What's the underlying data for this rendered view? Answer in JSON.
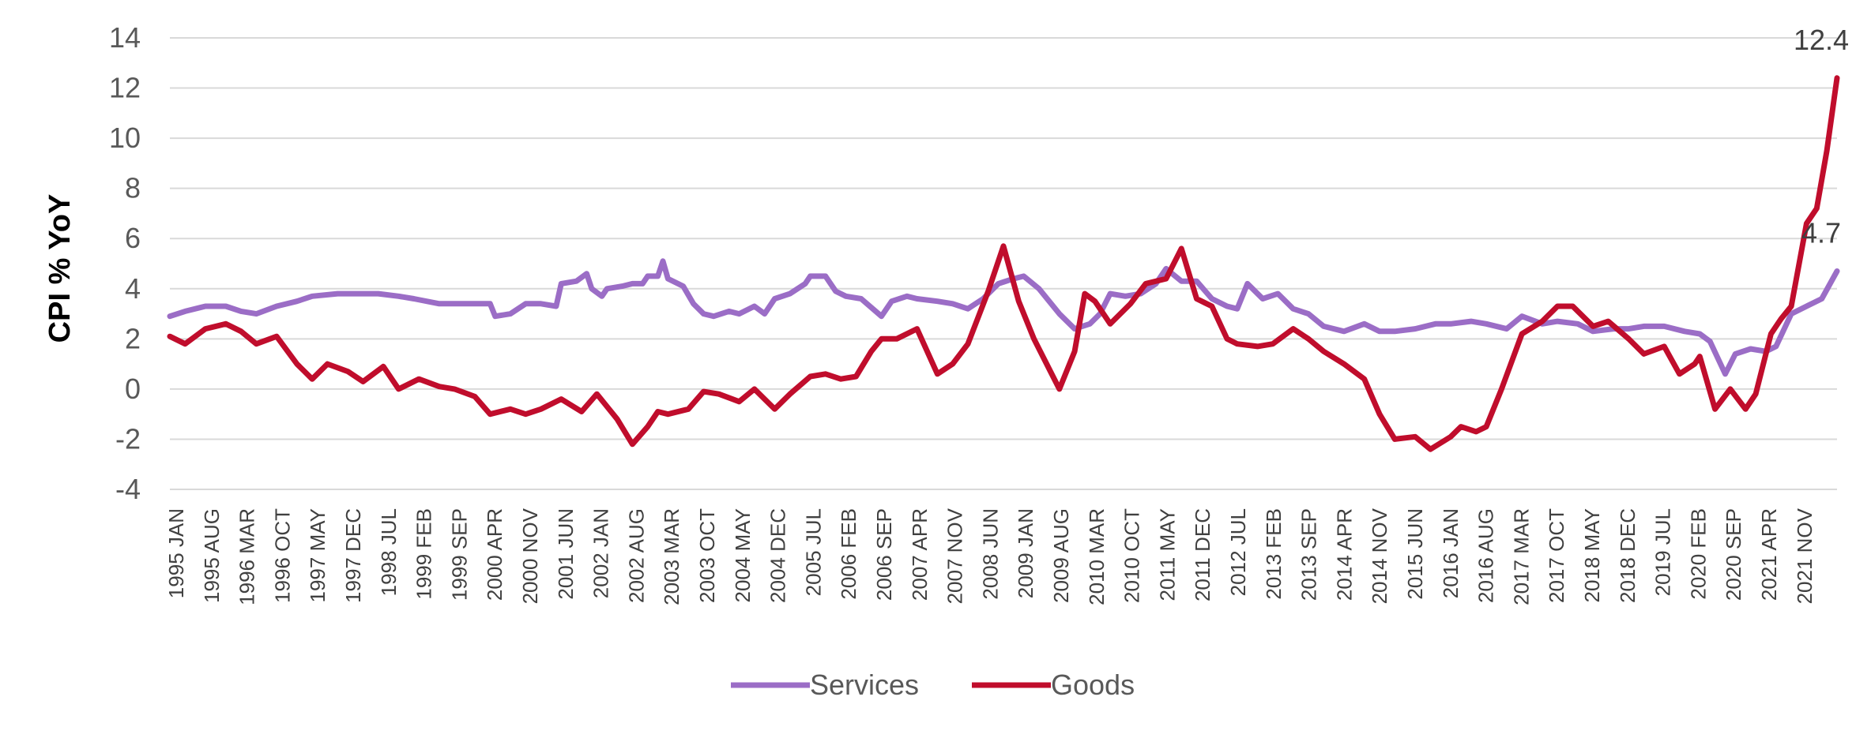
{
  "chart_data": {
    "type": "line",
    "title": "",
    "xlabel": "",
    "ylabel": "CPI % YoY",
    "ylim": [
      -4,
      14
    ],
    "y_ticks": [
      -4,
      -2,
      0,
      2,
      4,
      6,
      8,
      10,
      12,
      14
    ],
    "grid": "horizontal",
    "legend_position": "bottom",
    "x_start": "1995-01",
    "x_end": "2022-05",
    "x_tick_labels": [
      "1995 JAN",
      "1995 AUG",
      "1996 MAR",
      "1996 OCT",
      "1997 MAY",
      "1997 DEC",
      "1998 JUL",
      "1999 FEB",
      "1999 SEP",
      "2000 APR",
      "2000 NOV",
      "2001 JUN",
      "2002 JAN",
      "2002 AUG",
      "2003 MAR",
      "2003 OCT",
      "2004 MAY",
      "2004 DEC",
      "2005 JUL",
      "2006 FEB",
      "2006 SEP",
      "2007 APR",
      "2007 NOV",
      "2008 JUN",
      "2009 JAN",
      "2009 AUG",
      "2010 MAR",
      "2010 OCT",
      "2011 MAY",
      "2011 DEC",
      "2012 JUL",
      "2013 FEB",
      "2013 SEP",
      "2014 APR",
      "2014 NOV",
      "2015 JUN",
      "2016 JAN",
      "2016 AUG",
      "2017 MAR",
      "2017 OCT",
      "2018 MAY",
      "2018 DEC",
      "2019 JUL",
      "2020 FEB",
      "2020 SEP",
      "2021 APR",
      "2021 NOV"
    ],
    "series": [
      {
        "name": "Services",
        "color": "#9B6DC6",
        "end_label": "4.7",
        "points": [
          [
            "1995-01",
            2.9
          ],
          [
            "1995-04",
            3.1
          ],
          [
            "1995-08",
            3.3
          ],
          [
            "1995-12",
            3.3
          ],
          [
            "1996-03",
            3.1
          ],
          [
            "1996-06",
            3.0
          ],
          [
            "1996-10",
            3.3
          ],
          [
            "1997-02",
            3.5
          ],
          [
            "1997-05",
            3.7
          ],
          [
            "1997-10",
            3.8
          ],
          [
            "1998-01",
            3.8
          ],
          [
            "1998-06",
            3.8
          ],
          [
            "1998-10",
            3.7
          ],
          [
            "1999-01",
            3.6
          ],
          [
            "1999-06",
            3.4
          ],
          [
            "1999-12",
            3.4
          ],
          [
            "2000-04",
            3.4
          ],
          [
            "2000-05",
            2.9
          ],
          [
            "2000-08",
            3.0
          ],
          [
            "2000-11",
            3.4
          ],
          [
            "2001-02",
            3.4
          ],
          [
            "2001-05",
            3.3
          ],
          [
            "2001-06",
            4.2
          ],
          [
            "2001-09",
            4.3
          ],
          [
            "2001-11",
            4.6
          ],
          [
            "2001-12",
            4.0
          ],
          [
            "2002-02",
            3.7
          ],
          [
            "2002-03",
            4.0
          ],
          [
            "2002-06",
            4.1
          ],
          [
            "2002-08",
            4.2
          ],
          [
            "2002-10",
            4.2
          ],
          [
            "2002-11",
            4.5
          ],
          [
            "2003-01",
            4.5
          ],
          [
            "2003-02",
            5.1
          ],
          [
            "2003-03",
            4.4
          ],
          [
            "2003-06",
            4.1
          ],
          [
            "2003-08",
            3.4
          ],
          [
            "2003-10",
            3.0
          ],
          [
            "2003-12",
            2.9
          ],
          [
            "2004-03",
            3.1
          ],
          [
            "2004-05",
            3.0
          ],
          [
            "2004-08",
            3.3
          ],
          [
            "2004-10",
            3.0
          ],
          [
            "2004-12",
            3.6
          ],
          [
            "2005-03",
            3.8
          ],
          [
            "2005-06",
            4.2
          ],
          [
            "2005-07",
            4.5
          ],
          [
            "2005-10",
            4.5
          ],
          [
            "2005-12",
            3.9
          ],
          [
            "2006-02",
            3.7
          ],
          [
            "2006-05",
            3.6
          ],
          [
            "2006-09",
            2.9
          ],
          [
            "2006-11",
            3.5
          ],
          [
            "2007-02",
            3.7
          ],
          [
            "2007-04",
            3.6
          ],
          [
            "2007-08",
            3.5
          ],
          [
            "2007-11",
            3.4
          ],
          [
            "2008-02",
            3.2
          ],
          [
            "2008-05",
            3.6
          ],
          [
            "2008-08",
            4.2
          ],
          [
            "2008-11",
            4.4
          ],
          [
            "2009-01",
            4.5
          ],
          [
            "2009-04",
            4.0
          ],
          [
            "2009-08",
            3.0
          ],
          [
            "2009-11",
            2.4
          ],
          [
            "2010-02",
            2.6
          ],
          [
            "2010-04",
            3.0
          ],
          [
            "2010-06",
            3.8
          ],
          [
            "2010-09",
            3.7
          ],
          [
            "2010-12",
            3.8
          ],
          [
            "2011-03",
            4.2
          ],
          [
            "2011-05",
            4.8
          ],
          [
            "2011-08",
            4.3
          ],
          [
            "2011-11",
            4.3
          ],
          [
            "2012-02",
            3.6
          ],
          [
            "2012-05",
            3.3
          ],
          [
            "2012-07",
            3.2
          ],
          [
            "2012-09",
            4.2
          ],
          [
            "2012-12",
            3.6
          ],
          [
            "2013-03",
            3.8
          ],
          [
            "2013-06",
            3.2
          ],
          [
            "2013-09",
            3.0
          ],
          [
            "2013-12",
            2.5
          ],
          [
            "2014-04",
            2.3
          ],
          [
            "2014-08",
            2.6
          ],
          [
            "2014-11",
            2.3
          ],
          [
            "2015-02",
            2.3
          ],
          [
            "2015-06",
            2.4
          ],
          [
            "2015-10",
            2.6
          ],
          [
            "2016-01",
            2.6
          ],
          [
            "2016-05",
            2.7
          ],
          [
            "2016-08",
            2.6
          ],
          [
            "2016-12",
            2.4
          ],
          [
            "2017-03",
            2.9
          ],
          [
            "2017-07",
            2.6
          ],
          [
            "2017-10",
            2.7
          ],
          [
            "2018-02",
            2.6
          ],
          [
            "2018-05",
            2.3
          ],
          [
            "2018-09",
            2.4
          ],
          [
            "2018-12",
            2.4
          ],
          [
            "2019-03",
            2.5
          ],
          [
            "2019-07",
            2.5
          ],
          [
            "2019-11",
            2.3
          ],
          [
            "2020-02",
            2.2
          ],
          [
            "2020-04",
            1.9
          ],
          [
            "2020-07",
            0.6
          ],
          [
            "2020-09",
            1.4
          ],
          [
            "2020-12",
            1.6
          ],
          [
            "2021-03",
            1.5
          ],
          [
            "2021-05",
            1.7
          ],
          [
            "2021-08",
            3.0
          ],
          [
            "2021-11",
            3.3
          ],
          [
            "2022-02",
            3.6
          ],
          [
            "2022-05",
            4.7
          ]
        ]
      },
      {
        "name": "Goods",
        "color": "#C00D2C",
        "end_label": "12.4",
        "points": [
          [
            "1995-01",
            2.1
          ],
          [
            "1995-04",
            1.8
          ],
          [
            "1995-08",
            2.4
          ],
          [
            "1995-12",
            2.6
          ],
          [
            "1996-03",
            2.3
          ],
          [
            "1996-06",
            1.8
          ],
          [
            "1996-10",
            2.1
          ],
          [
            "1997-02",
            1.0
          ],
          [
            "1997-05",
            0.4
          ],
          [
            "1997-08",
            1.0
          ],
          [
            "1997-12",
            0.7
          ],
          [
            "1998-03",
            0.3
          ],
          [
            "1998-07",
            0.9
          ],
          [
            "1998-10",
            0.0
          ],
          [
            "1999-02",
            0.4
          ],
          [
            "1999-06",
            0.1
          ],
          [
            "1999-09",
            0.0
          ],
          [
            "2000-01",
            -0.3
          ],
          [
            "2000-04",
            -1.0
          ],
          [
            "2000-08",
            -0.8
          ],
          [
            "2000-11",
            -1.0
          ],
          [
            "2001-02",
            -0.8
          ],
          [
            "2001-06",
            -0.4
          ],
          [
            "2001-10",
            -0.9
          ],
          [
            "2002-01",
            -0.2
          ],
          [
            "2002-05",
            -1.2
          ],
          [
            "2002-08",
            -2.2
          ],
          [
            "2002-11",
            -1.5
          ],
          [
            "2003-01",
            -0.9
          ],
          [
            "2003-03",
            -1.0
          ],
          [
            "2003-07",
            -0.8
          ],
          [
            "2003-10",
            -0.1
          ],
          [
            "2004-01",
            -0.2
          ],
          [
            "2004-05",
            -0.5
          ],
          [
            "2004-08",
            0.0
          ],
          [
            "2004-12",
            -0.8
          ],
          [
            "2005-03",
            -0.2
          ],
          [
            "2005-07",
            0.5
          ],
          [
            "2005-10",
            0.6
          ],
          [
            "2006-01",
            0.4
          ],
          [
            "2006-04",
            0.5
          ],
          [
            "2006-07",
            1.5
          ],
          [
            "2006-09",
            2.0
          ],
          [
            "2006-12",
            2.0
          ],
          [
            "2007-04",
            2.4
          ],
          [
            "2007-08",
            0.6
          ],
          [
            "2007-11",
            1.0
          ],
          [
            "2008-02",
            1.8
          ],
          [
            "2008-06",
            3.9
          ],
          [
            "2008-09",
            5.7
          ],
          [
            "2008-12",
            3.5
          ],
          [
            "2009-03",
            2.0
          ],
          [
            "2009-06",
            0.8
          ],
          [
            "2009-08",
            0.0
          ],
          [
            "2009-11",
            1.5
          ],
          [
            "2010-01",
            3.8
          ],
          [
            "2010-03",
            3.5
          ],
          [
            "2010-06",
            2.6
          ],
          [
            "2010-10",
            3.4
          ],
          [
            "2011-01",
            4.2
          ],
          [
            "2011-05",
            4.4
          ],
          [
            "2011-08",
            5.6
          ],
          [
            "2011-11",
            3.6
          ],
          [
            "2012-02",
            3.3
          ],
          [
            "2012-05",
            2.0
          ],
          [
            "2012-07",
            1.8
          ],
          [
            "2012-11",
            1.7
          ],
          [
            "2013-02",
            1.8
          ],
          [
            "2013-06",
            2.4
          ],
          [
            "2013-09",
            2.0
          ],
          [
            "2013-12",
            1.5
          ],
          [
            "2014-04",
            1.0
          ],
          [
            "2014-08",
            0.4
          ],
          [
            "2014-11",
            -1.0
          ],
          [
            "2015-02",
            -2.0
          ],
          [
            "2015-06",
            -1.9
          ],
          [
            "2015-09",
            -2.4
          ],
          [
            "2016-01",
            -1.9
          ],
          [
            "2016-03",
            -1.5
          ],
          [
            "2016-06",
            -1.7
          ],
          [
            "2016-08",
            -1.5
          ],
          [
            "2016-11",
            0.0
          ],
          [
            "2017-03",
            2.2
          ],
          [
            "2017-07",
            2.7
          ],
          [
            "2017-10",
            3.3
          ],
          [
            "2018-01",
            3.3
          ],
          [
            "2018-05",
            2.5
          ],
          [
            "2018-08",
            2.7
          ],
          [
            "2018-12",
            2.0
          ],
          [
            "2019-03",
            1.4
          ],
          [
            "2019-07",
            1.7
          ],
          [
            "2019-10",
            0.6
          ],
          [
            "2020-01",
            1.0
          ],
          [
            "2020-02",
            1.3
          ],
          [
            "2020-05",
            -0.8
          ],
          [
            "2020-08",
            0.0
          ],
          [
            "2020-11",
            -0.8
          ],
          [
            "2021-01",
            -0.2
          ],
          [
            "2021-04",
            2.2
          ],
          [
            "2021-06",
            2.8
          ],
          [
            "2021-08",
            3.3
          ],
          [
            "2021-11",
            6.6
          ],
          [
            "2022-01",
            7.2
          ],
          [
            "2022-03",
            9.5
          ],
          [
            "2022-05",
            12.4
          ]
        ]
      }
    ]
  }
}
